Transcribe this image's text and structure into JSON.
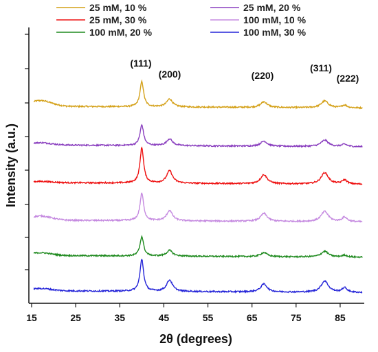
{
  "chart_data": {
    "type": "line",
    "title": "",
    "xlabel": "2θ (degrees)",
    "ylabel": "Intensity (a.u.)",
    "xlim": [
      15,
      90
    ],
    "x_ticks": [
      "15",
      "25",
      "35",
      "45",
      "55",
      "65",
      "75",
      "85"
    ],
    "y_tick_labels_shown": false,
    "legend_position": "top",
    "peak_labels": [
      {
        "text": "(111)",
        "x": 40
      },
      {
        "text": "(200)",
        "x": 46.3
      },
      {
        "text": "(220)",
        "x": 67.7
      },
      {
        "text": "(311)",
        "x": 81.5
      },
      {
        "text": "(222)",
        "x": 86
      }
    ],
    "peaks": [
      {
        "x": 40.0,
        "width": 0.5
      },
      {
        "x": 46.3,
        "width": 0.8
      },
      {
        "x": 67.7,
        "width": 0.9
      },
      {
        "x": 81.5,
        "width": 1.0
      },
      {
        "x": 86.0,
        "width": 0.7
      }
    ],
    "series": [
      {
        "name": "25 mM, 10 %",
        "color": "#d4a017",
        "order": 0,
        "baseline": 0.835,
        "peak_heights": [
          0.11,
          0.035,
          0.025,
          0.03,
          0.012
        ],
        "hump": 0.025
      },
      {
        "name": "25 mM, 20 %",
        "color": "#8a3fbf",
        "order": 1,
        "baseline": 0.665,
        "peak_heights": [
          0.09,
          0.03,
          0.022,
          0.028,
          0.01
        ],
        "hump": 0.01
      },
      {
        "name": "25 mM, 30 %",
        "color": "#ee1111",
        "order": 2,
        "baseline": 0.5,
        "peak_heights": [
          0.155,
          0.055,
          0.04,
          0.05,
          0.018
        ],
        "hump": 0.005
      },
      {
        "name": "100 mM, 10 %",
        "color": "#c58ae0",
        "order": 3,
        "baseline": 0.335,
        "peak_heights": [
          0.12,
          0.045,
          0.035,
          0.045,
          0.02
        ],
        "hump": 0.018
      },
      {
        "name": "100 mM, 20 %",
        "color": "#1f8a1f",
        "order": 4,
        "baseline": 0.18,
        "peak_heights": [
          0.085,
          0.025,
          0.018,
          0.025,
          0.008
        ],
        "hump": 0.012
      },
      {
        "name": "100 mM, 30 %",
        "color": "#2424d8",
        "order": 5,
        "baseline": 0.025,
        "peak_heights": [
          0.14,
          0.05,
          0.035,
          0.05,
          0.02
        ],
        "hump": 0.01
      }
    ]
  }
}
